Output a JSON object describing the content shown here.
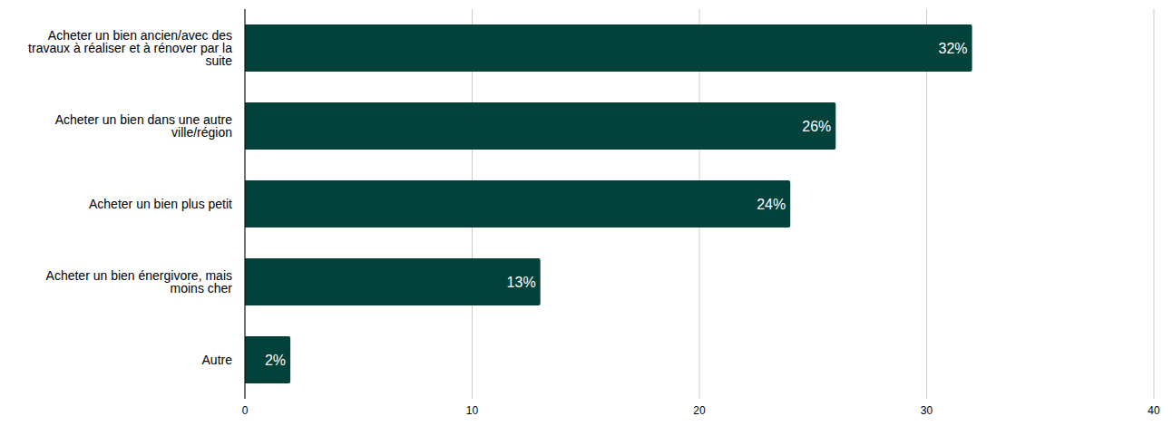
{
  "chart_data": {
    "type": "bar",
    "orientation": "horizontal",
    "categories": [
      "Acheter un bien ancien/avec des travaux à réaliser et à rénover par la suite",
      "Acheter un bien dans une autre ville/région",
      "Acheter un bien plus petit",
      "Acheter un bien énergivore, mais moins cher",
      "Autre"
    ],
    "values": [
      32,
      26,
      24,
      13,
      2
    ],
    "value_labels": [
      "32%",
      "26%",
      "24%",
      "13%",
      "2%"
    ],
    "color": "#03423A",
    "xlim": [
      0,
      40
    ],
    "xticks": [
      0,
      10,
      20,
      30,
      40
    ],
    "grid": true,
    "data_labels": true
  }
}
